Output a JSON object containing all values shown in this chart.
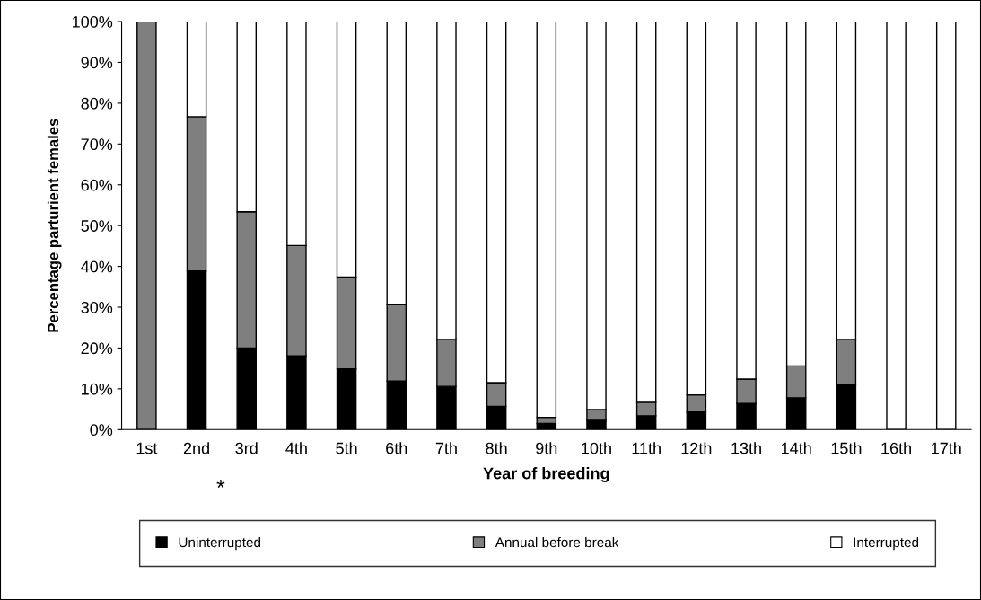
{
  "chart_data": {
    "type": "bar",
    "stacked": true,
    "xlabel": "Year of breeding",
    "ylabel": "Percentage parturient females",
    "categories": [
      "1st",
      "2nd",
      "3rd",
      "4th",
      "5th",
      "6th",
      "7th",
      "8th",
      "9th",
      "10th",
      "11th",
      "12th",
      "13th",
      "14th",
      "15th",
      "16th",
      "17th"
    ],
    "series": [
      {
        "name": "Uninterrupted",
        "color": "#000000",
        "values": [
          0,
          38.9,
          20.0,
          18.1,
          14.9,
          11.9,
          10.6,
          5.7,
          1.5,
          2.3,
          3.4,
          4.3,
          6.4,
          7.8,
          11.1,
          0,
          0
        ]
      },
      {
        "name": "Annual before break",
        "color": "#7f7f7f",
        "values": [
          100,
          37.8,
          33.4,
          27.0,
          22.5,
          18.7,
          11.5,
          5.8,
          1.5,
          2.6,
          3.3,
          4.2,
          6.0,
          7.8,
          11.0,
          0,
          0
        ]
      },
      {
        "name": "Interrupted",
        "color": "#ffffff",
        "values": [
          0,
          23.3,
          46.6,
          54.9,
          62.6,
          69.4,
          77.9,
          88.5,
          97.0,
          95.1,
          93.3,
          91.5,
          87.6,
          84.4,
          77.9,
          100,
          100
        ]
      }
    ],
    "ylim": [
      0,
      100
    ],
    "yticks": [
      {
        "value": 0,
        "label": "0%"
      },
      {
        "value": 10,
        "label": "10%"
      },
      {
        "value": 20,
        "label": "20%"
      },
      {
        "value": 30,
        "label": "30%"
      },
      {
        "value": 40,
        "label": "40%"
      },
      {
        "value": 50,
        "label": "50%"
      },
      {
        "value": 60,
        "label": "60%"
      },
      {
        "value": 70,
        "label": "70%"
      },
      {
        "value": 80,
        "label": "80%"
      },
      {
        "value": 90,
        "label": "90%"
      },
      {
        "value": 100,
        "label": "100%"
      }
    ],
    "grid": false,
    "legend": "bottom",
    "annotations": [
      "*"
    ]
  }
}
